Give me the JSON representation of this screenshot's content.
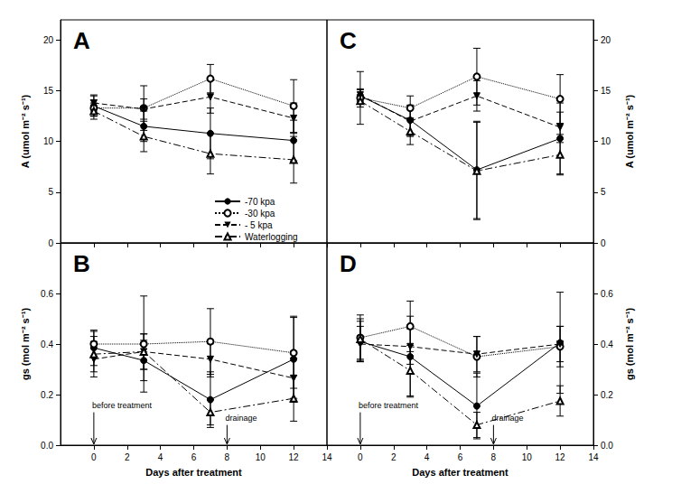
{
  "chart_data": [
    {
      "type": "line",
      "title": "A",
      "ylabel": "A (umol m⁻² s⁻¹)",
      "tick_labels": "y",
      "legend": "lower right",
      "x": [
        0,
        3,
        7,
        12
      ],
      "xlim": [
        -2,
        14
      ],
      "xticks": [
        0,
        2,
        4,
        6,
        8,
        10,
        12,
        14
      ],
      "ylim": [
        0,
        22
      ],
      "yticks": [
        0,
        5,
        10,
        15,
        20
      ],
      "series": [
        {
          "name": "-70 kpa",
          "color": "#000000",
          "marker": "circle",
          "line_style": "solid",
          "values": [
            13.5,
            11.5,
            10.8,
            10.1
          ],
          "errors": [
            1.0,
            1.5,
            2.5,
            2.0
          ]
        },
        {
          "name": "-30 kpa",
          "color": "#000000",
          "marker": "open_circle",
          "line_style": "dotted",
          "values": [
            13.3,
            13.3,
            16.2,
            13.5
          ],
          "errors": [
            0.8,
            2.2,
            1.4,
            2.6
          ]
        },
        {
          "name": "- 5 kpa",
          "color": "#000000",
          "marker": "inverted_triangle",
          "line_style": "dashed",
          "values": [
            13.8,
            13.2,
            14.4,
            12.3
          ],
          "errors": [
            0.8,
            1.0,
            1.6,
            1.5
          ]
        },
        {
          "name": "Waterlogging",
          "color": "#000000",
          "marker": "open_triangle",
          "line_style": "dashdot",
          "values": [
            13.0,
            10.5,
            8.8,
            8.2
          ],
          "errors": [
            0.8,
            1.5,
            2.0,
            2.3
          ]
        }
      ]
    },
    {
      "type": "line",
      "title": "C",
      "ylabel": "A (umol m⁻² s⁻¹)",
      "tick_labels": "y",
      "x": [
        0,
        3,
        7,
        12
      ],
      "xlim": [
        -2,
        14
      ],
      "xticks": [
        0,
        2,
        4,
        6,
        8,
        10,
        12,
        14
      ],
      "ylim": [
        0,
        22
      ],
      "yticks": [
        0,
        5,
        10,
        15,
        20
      ],
      "series": [
        {
          "name": "-70 kpa",
          "color": "#000000",
          "marker": "circle",
          "line_style": "solid",
          "values": [
            14.5,
            12.1,
            7.2,
            10.3
          ],
          "errors": [
            0.6,
            1.5,
            4.8,
            3.5
          ]
        },
        {
          "name": "-30 kpa",
          "color": "#000000",
          "marker": "open_circle",
          "line_style": "dotted",
          "values": [
            14.3,
            13.3,
            16.4,
            14.2
          ],
          "errors": [
            2.6,
            1.2,
            2.8,
            2.4
          ]
        },
        {
          "name": "- 5 kpa",
          "color": "#000000",
          "marker": "inverted_triangle",
          "line_style": "dashed",
          "values": [
            14.6,
            12.0,
            14.5,
            11.4
          ],
          "errors": [
            0.6,
            1.5,
            1.5,
            1.5
          ]
        },
        {
          "name": "Waterlogging",
          "color": "#000000",
          "marker": "open_triangle",
          "line_style": "dashdot",
          "values": [
            14.0,
            11.0,
            7.1,
            8.7
          ],
          "errors": [
            0.6,
            1.3,
            4.8,
            2.0
          ]
        }
      ]
    },
    {
      "type": "line",
      "title": "B",
      "ylabel": "gs (mol m⁻² s⁻¹)",
      "xlabel": "Days after treatment",
      "x": [
        0,
        3,
        7,
        12
      ],
      "xlim": [
        -2,
        14
      ],
      "xticks": [
        0,
        2,
        4,
        6,
        8,
        10,
        12,
        14
      ],
      "ylim": [
        0,
        0.8
      ],
      "yticks": [
        {
          "value": 0,
          "label": "0.0"
        },
        0.2,
        0.4,
        0.6
      ],
      "annotations": [
        {
          "text": "before treatment",
          "x": 0,
          "y": 0.13
        },
        {
          "text": "drainage",
          "x": 8,
          "y": 0.08
        }
      ],
      "series": [
        {
          "name": "-70 kpa",
          "color": "#000000",
          "marker": "circle",
          "line_style": "solid",
          "values": [
            0.385,
            0.335,
            0.18,
            0.34
          ],
          "errors": [
            0.07,
            0.08,
            0.11,
            0.17
          ]
        },
        {
          "name": "-30 kpa",
          "color": "#000000",
          "marker": "open_circle",
          "line_style": "dotted",
          "values": [
            0.4,
            0.4,
            0.41,
            0.365
          ],
          "errors": [
            0.05,
            0.19,
            0.13,
            0.14
          ]
        },
        {
          "name": "- 5 kpa",
          "color": "#000000",
          "marker": "inverted_triangle",
          "line_style": "dashed",
          "values": [
            0.34,
            0.37,
            0.34,
            0.265
          ],
          "errors": [
            0.07,
            0.07,
            0.07,
            0.08
          ]
        },
        {
          "name": "Waterlogging",
          "color": "#000000",
          "marker": "open_triangle",
          "line_style": "dashdot",
          "values": [
            0.36,
            0.37,
            0.13,
            0.185
          ],
          "errors": [
            0.07,
            0.07,
            0.05,
            0.09
          ]
        }
      ]
    },
    {
      "type": "line",
      "title": "D",
      "ylabel": "gs (mol m⁻² s⁻¹)",
      "xlabel": "Days after treatment",
      "x": [
        0,
        3,
        7,
        12
      ],
      "xlim": [
        -2,
        14
      ],
      "xticks": [
        0,
        2,
        4,
        6,
        8,
        10,
        12,
        14
      ],
      "ylim": [
        0,
        0.8
      ],
      "yticks": [
        {
          "value": 0,
          "label": "0.0"
        },
        0.2,
        0.4,
        0.6
      ],
      "annotations": [
        {
          "text": "before treatment",
          "x": 0,
          "y": 0.13
        },
        {
          "text": "drainage",
          "x": 8,
          "y": 0.08
        }
      ],
      "series": [
        {
          "name": "-70 kpa",
          "color": "#000000",
          "marker": "circle",
          "line_style": "solid",
          "values": [
            0.41,
            0.35,
            0.155,
            0.405
          ],
          "errors": [
            0.08,
            0.16,
            0.13,
            0.2
          ]
        },
        {
          "name": "-30 kpa",
          "color": "#000000",
          "marker": "open_circle",
          "line_style": "dotted",
          "values": [
            0.425,
            0.47,
            0.35,
            0.39
          ],
          "errors": [
            0.09,
            0.1,
            0.08,
            0.08
          ]
        },
        {
          "name": "- 5 kpa",
          "color": "#000000",
          "marker": "inverted_triangle",
          "line_style": "dashed",
          "values": [
            0.4,
            0.39,
            0.36,
            0.4
          ],
          "errors": [
            0.07,
            0.07,
            0.07,
            0.07
          ]
        },
        {
          "name": "Waterlogging",
          "color": "#000000",
          "marker": "open_triangle",
          "line_style": "dashdot",
          "values": [
            0.42,
            0.295,
            0.08,
            0.175
          ],
          "errors": [
            0.08,
            0.1,
            0.05,
            0.06
          ]
        }
      ]
    }
  ]
}
